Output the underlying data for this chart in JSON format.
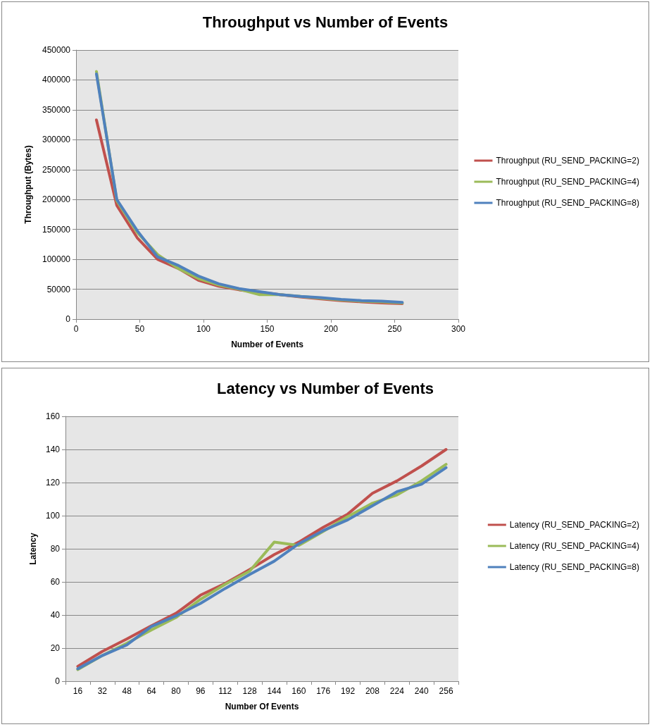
{
  "chart_data": [
    {
      "type": "line",
      "title": "Throughput vs Number of Events",
      "xlabel": "Number of Events",
      "ylabel": "Throughput (Bytes)",
      "x": [
        16,
        32,
        48,
        64,
        80,
        96,
        112,
        128,
        144,
        160,
        176,
        192,
        208,
        224,
        240,
        256
      ],
      "series": [
        {
          "name": "Throughput (RU_SEND_PACKING=2)",
          "color": "#c0504d",
          "values": [
            333000,
            190000,
            136000,
            100000,
            85000,
            65000,
            55000,
            49000,
            45000,
            41000,
            37000,
            34000,
            31000,
            29000,
            27000,
            26000
          ]
        },
        {
          "name": "Throughput (RU_SEND_PACKING=4)",
          "color": "#9bbb59",
          "values": [
            414000,
            198000,
            145000,
            108000,
            85000,
            68000,
            57000,
            50000,
            41000,
            41000,
            38000,
            35000,
            32000,
            30000,
            29000,
            27000
          ]
        },
        {
          "name": "Throughput (RU_SEND_PACKING=8)",
          "color": "#4f81bd",
          "values": [
            410000,
            200000,
            148000,
            104000,
            90000,
            72000,
            59000,
            51000,
            46000,
            41000,
            38000,
            36000,
            33000,
            31000,
            30000,
            28000
          ]
        }
      ],
      "xlim": [
        0,
        300
      ],
      "xticks": [
        0,
        50,
        100,
        150,
        200,
        250,
        300
      ],
      "ylim": [
        0,
        450000
      ],
      "yticks": [
        0,
        50000,
        100000,
        150000,
        200000,
        250000,
        300000,
        350000,
        400000,
        450000
      ],
      "grid": "y",
      "legend": "right",
      "marker": "none",
      "line_style": "solid"
    },
    {
      "type": "line",
      "title": "Latency vs Number of Events",
      "xlabel": "Number Of Events",
      "ylabel": "Latency",
      "categories": [
        "16",
        "32",
        "48",
        "64",
        "80",
        "96",
        "112",
        "128",
        "144",
        "160",
        "176",
        "192",
        "208",
        "224",
        "240",
        "256"
      ],
      "series": [
        {
          "name": "Latency (RU_SEND_PACKING=2)",
          "color": "#c0504d",
          "values": [
            9,
            18,
            25.5,
            33.5,
            41,
            52,
            59,
            67.5,
            76.5,
            84,
            93,
            101,
            113.5,
            121,
            130,
            140
          ]
        },
        {
          "name": "Latency (RU_SEND_PACKING=4)",
          "color": "#9bbb59",
          "values": [
            7,
            15.5,
            23,
            31,
            38.5,
            49.5,
            58.5,
            66.5,
            84,
            82,
            90.5,
            99.5,
            107.5,
            112.5,
            121,
            131
          ]
        },
        {
          "name": "Latency (RU_SEND_PACKING=8)",
          "color": "#4f81bd",
          "values": [
            7.5,
            15.5,
            22,
            33,
            39.5,
            47,
            56,
            64.5,
            72.5,
            83,
            91,
            97.5,
            106,
            114.5,
            119,
            129
          ]
        }
      ],
      "ylim": [
        0,
        160
      ],
      "yticks": [
        0,
        20,
        40,
        60,
        80,
        100,
        120,
        140,
        160
      ],
      "grid": "y",
      "legend": "right",
      "marker": "none",
      "line_style": "solid"
    }
  ]
}
